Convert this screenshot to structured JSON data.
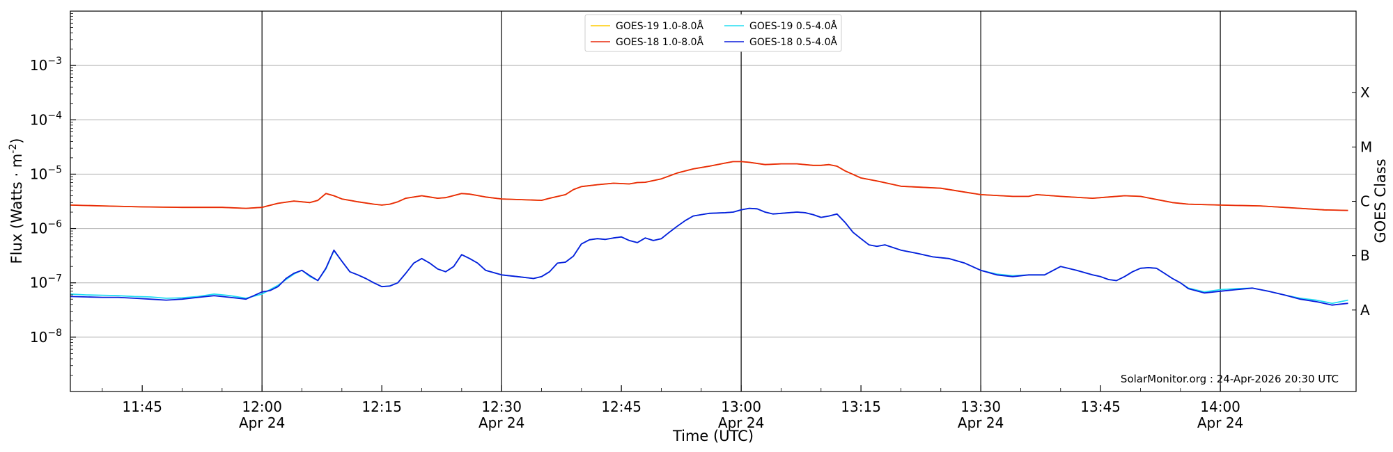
{
  "chart_data": {
    "type": "line",
    "xlabel": "Time (UTC)",
    "ylabel": "Flux (Watts · m",
    "ylabel_superscript": "-2",
    "ylabel_close": ")",
    "y2label": "GOES Class",
    "y_scale": "log",
    "ylim": [
      1e-09,
      0.01
    ],
    "xlim": [
      "11:36",
      "14:17"
    ],
    "grid": "horizontal",
    "legend_position": "top-center",
    "credit": "SolarMonitor.org : 24-Apr-2026 20:30 UTC",
    "y_ticks": [
      {
        "value": 0.001,
        "base": "10",
        "exp": "−3"
      },
      {
        "value": 0.0001,
        "base": "10",
        "exp": "−4"
      },
      {
        "value": 1e-05,
        "base": "10",
        "exp": "−5"
      },
      {
        "value": 1e-06,
        "base": "10",
        "exp": "−6"
      },
      {
        "value": 1e-07,
        "base": "10",
        "exp": "−7"
      },
      {
        "value": 1e-08,
        "base": "10",
        "exp": "−8"
      }
    ],
    "x_ticks": [
      {
        "time": "11:45",
        "label": "11:45",
        "date": ""
      },
      {
        "time": "12:00",
        "label": "12:00",
        "date": "Apr 24"
      },
      {
        "time": "12:15",
        "label": "12:15",
        "date": ""
      },
      {
        "time": "12:30",
        "label": "12:30",
        "date": "Apr 24"
      },
      {
        "time": "12:45",
        "label": "12:45",
        "date": ""
      },
      {
        "time": "13:00",
        "label": "13:00",
        "date": "Apr 24"
      },
      {
        "time": "13:15",
        "label": "13:15",
        "date": ""
      },
      {
        "time": "13:30",
        "label": "13:30",
        "date": "Apr 24"
      },
      {
        "time": "13:45",
        "label": "13:45",
        "date": ""
      },
      {
        "time": "14:00",
        "label": "14:00",
        "date": "Apr 24"
      }
    ],
    "vlines": [
      "12:00",
      "12:30",
      "13:00",
      "13:30",
      "14:00"
    ],
    "goes_classes": [
      {
        "label": "A",
        "value": 3.16e-08
      },
      {
        "label": "B",
        "value": 3.16e-07
      },
      {
        "label": "C",
        "value": 3.16e-06
      },
      {
        "label": "M",
        "value": 3.16e-05
      },
      {
        "label": "X",
        "value": 0.000316
      }
    ],
    "series": [
      {
        "name": "GOES-19 1.0-8.0Å",
        "color": "#ffcc00",
        "x": [
          "11:36",
          "11:40",
          "11:45",
          "11:50",
          "11:55",
          "11:58",
          "12:00",
          "12:02",
          "12:04",
          "12:06",
          "12:07",
          "12:08",
          "12:09",
          "12:10",
          "12:12",
          "12:14",
          "12:15",
          "12:16",
          "12:17",
          "12:18",
          "12:20",
          "12:21",
          "12:22",
          "12:23",
          "12:25",
          "12:26",
          "12:28",
          "12:30",
          "12:35",
          "12:36",
          "12:38",
          "12:39",
          "12:40",
          "12:42",
          "12:44",
          "12:46",
          "12:47",
          "12:48",
          "12:50",
          "12:52",
          "12:54",
          "12:56",
          "12:58",
          "12:59",
          "13:00",
          "13:01",
          "13:03",
          "13:05",
          "13:07",
          "13:09",
          "13:10",
          "13:11",
          "13:12",
          "13:13",
          "13:15",
          "13:17",
          "13:20",
          "13:25",
          "13:30",
          "13:34",
          "13:35",
          "13:36",
          "13:37",
          "13:40",
          "13:44",
          "13:46",
          "13:48",
          "13:50",
          "13:54",
          "13:56",
          "14:00",
          "14:05",
          "14:10",
          "14:13",
          "14:16"
        ],
        "values": [
          2.7e-06,
          2.6e-06,
          2.5e-06,
          2.45e-06,
          2.45e-06,
          2.35e-06,
          2.45e-06,
          2.9e-06,
          3.2e-06,
          3e-06,
          3.3e-06,
          4.4e-06,
          4e-06,
          3.5e-06,
          3.1e-06,
          2.8e-06,
          2.7e-06,
          2.8e-06,
          3.1e-06,
          3.6e-06,
          4e-06,
          3.8e-06,
          3.6e-06,
          3.7e-06,
          4.4e-06,
          4.3e-06,
          3.8e-06,
          3.5e-06,
          3.3e-06,
          3.6e-06,
          4.2e-06,
          5.2e-06,
          5.9e-06,
          6.4e-06,
          6.8e-06,
          6.6e-06,
          7e-06,
          7.1e-06,
          8.2e-06,
          1.05e-05,
          1.25e-05,
          1.4e-05,
          1.6e-05,
          1.7e-05,
          1.7e-05,
          1.65e-05,
          1.5e-05,
          1.55e-05,
          1.55e-05,
          1.45e-05,
          1.45e-05,
          1.5e-05,
          1.4e-05,
          1.15e-05,
          8.5e-06,
          7.5e-06,
          6e-06,
          5.5e-06,
          4.2e-06,
          3.9e-06,
          3.9e-06,
          3.9e-06,
          4.2e-06,
          3.9e-06,
          3.6e-06,
          3.8e-06,
          4e-06,
          3.9e-06,
          3e-06,
          2.8e-06,
          2.7e-06,
          2.6e-06,
          2.35e-06,
          2.2e-06,
          2.15e-06
        ]
      },
      {
        "name": "GOES-18 1.0-8.0Å",
        "color": "#e8280b",
        "x": [
          "11:36",
          "11:40",
          "11:45",
          "11:50",
          "11:55",
          "11:58",
          "12:00",
          "12:02",
          "12:04",
          "12:06",
          "12:07",
          "12:08",
          "12:09",
          "12:10",
          "12:12",
          "12:14",
          "12:15",
          "12:16",
          "12:17",
          "12:18",
          "12:20",
          "12:21",
          "12:22",
          "12:23",
          "12:25",
          "12:26",
          "12:28",
          "12:30",
          "12:35",
          "12:36",
          "12:38",
          "12:39",
          "12:40",
          "12:42",
          "12:44",
          "12:46",
          "12:47",
          "12:48",
          "12:50",
          "12:52",
          "12:54",
          "12:56",
          "12:58",
          "12:59",
          "13:00",
          "13:01",
          "13:03",
          "13:05",
          "13:07",
          "13:09",
          "13:10",
          "13:11",
          "13:12",
          "13:13",
          "13:15",
          "13:17",
          "13:20",
          "13:25",
          "13:30",
          "13:34",
          "13:35",
          "13:36",
          "13:37",
          "13:40",
          "13:44",
          "13:46",
          "13:48",
          "13:50",
          "13:54",
          "13:56",
          "14:00",
          "14:05",
          "14:10",
          "14:13",
          "14:16"
        ],
        "values": [
          2.7e-06,
          2.6e-06,
          2.5e-06,
          2.45e-06,
          2.45e-06,
          2.35e-06,
          2.45e-06,
          2.9e-06,
          3.2e-06,
          3e-06,
          3.3e-06,
          4.4e-06,
          4e-06,
          3.5e-06,
          3.1e-06,
          2.8e-06,
          2.7e-06,
          2.8e-06,
          3.1e-06,
          3.6e-06,
          4e-06,
          3.8e-06,
          3.6e-06,
          3.7e-06,
          4.4e-06,
          4.3e-06,
          3.8e-06,
          3.5e-06,
          3.3e-06,
          3.6e-06,
          4.2e-06,
          5.2e-06,
          5.9e-06,
          6.4e-06,
          6.8e-06,
          6.6e-06,
          7e-06,
          7.1e-06,
          8.2e-06,
          1.05e-05,
          1.25e-05,
          1.4e-05,
          1.6e-05,
          1.7e-05,
          1.7e-05,
          1.65e-05,
          1.5e-05,
          1.55e-05,
          1.55e-05,
          1.45e-05,
          1.45e-05,
          1.5e-05,
          1.4e-05,
          1.15e-05,
          8.5e-06,
          7.5e-06,
          6e-06,
          5.5e-06,
          4.2e-06,
          3.9e-06,
          3.9e-06,
          3.9e-06,
          4.2e-06,
          3.9e-06,
          3.6e-06,
          3.8e-06,
          4e-06,
          3.9e-06,
          3e-06,
          2.8e-06,
          2.7e-06,
          2.6e-06,
          2.35e-06,
          2.2e-06,
          2.15e-06
        ]
      },
      {
        "name": "GOES-19 0.5-4.0Å",
        "color": "#22ddf2",
        "x": [
          "11:36",
          "11:38",
          "11:40",
          "11:42",
          "11:44",
          "11:46",
          "11:48",
          "11:50",
          "11:52",
          "11:54",
          "11:56",
          "11:58",
          "12:00",
          "12:01",
          "12:02",
          "12:03",
          "12:04",
          "12:05",
          "12:06",
          "12:07",
          "12:08",
          "12:09",
          "12:10",
          "12:11",
          "12:12",
          "12:13",
          "12:14",
          "12:15",
          "12:16",
          "12:17",
          "12:18",
          "12:19",
          "12:20",
          "12:21",
          "12:22",
          "12:23",
          "12:24",
          "12:25",
          "12:26",
          "12:27",
          "12:28",
          "12:30",
          "12:32",
          "12:34",
          "12:35",
          "12:36",
          "12:37",
          "12:38",
          "12:39",
          "12:40",
          "12:41",
          "12:42",
          "12:43",
          "12:44",
          "12:45",
          "12:46",
          "12:47",
          "12:48",
          "12:49",
          "12:50",
          "12:51",
          "12:52",
          "12:53",
          "12:54",
          "12:56",
          "12:58",
          "12:59",
          "13:00",
          "13:01",
          "13:02",
          "13:03",
          "13:04",
          "13:05",
          "13:06",
          "13:07",
          "13:08",
          "13:09",
          "13:10",
          "13:11",
          "13:12",
          "13:13",
          "13:14",
          "13:15",
          "13:16",
          "13:17",
          "13:18",
          "13:20",
          "13:22",
          "13:24",
          "13:26",
          "13:28",
          "13:30",
          "13:32",
          "13:34",
          "13:36",
          "13:38",
          "13:40",
          "13:42",
          "13:44",
          "13:45",
          "13:46",
          "13:47",
          "13:48",
          "13:49",
          "13:50",
          "13:51",
          "13:52",
          "13:53",
          "13:54",
          "13:55",
          "13:56",
          "13:58",
          "14:00",
          "14:02",
          "14:04",
          "14:06",
          "14:08",
          "14:10",
          "14:12",
          "14:14",
          "14:16"
        ],
        "values": [
          6.2e-08,
          6e-08,
          5.9e-08,
          5.8e-08,
          5.6e-08,
          5.5e-08,
          5.2e-08,
          5.3e-08,
          5.6e-08,
          6.2e-08,
          5.8e-08,
          5.2e-08,
          6.2e-08,
          7.5e-08,
          9e-08,
          1.15e-07,
          1.45e-07,
          1.7e-07,
          1.3e-07,
          1.1e-07,
          1.8e-07,
          3.9e-07,
          2.5e-07,
          1.6e-07,
          1.4e-07,
          1.2e-07,
          1e-07,
          8.5e-08,
          8.8e-08,
          1e-07,
          1.5e-07,
          2.3e-07,
          2.8e-07,
          2.3e-07,
          1.8e-07,
          1.6e-07,
          2e-07,
          3.3e-07,
          2.8e-07,
          2.3e-07,
          1.7e-07,
          1.4e-07,
          1.3e-07,
          1.2e-07,
          1.3e-07,
          1.6e-07,
          2.3e-07,
          2.4e-07,
          3.1e-07,
          5.2e-07,
          6.2e-07,
          6.5e-07,
          6.3e-07,
          6.7e-07,
          7e-07,
          6e-07,
          5.5e-07,
          6.7e-07,
          6e-07,
          6.5e-07,
          8.5e-07,
          1.1e-06,
          1.4e-06,
          1.7e-06,
          1.9e-06,
          1.95e-06,
          2e-06,
          2.2e-06,
          2.35e-06,
          2.3e-06,
          2e-06,
          1.85e-06,
          1.9e-06,
          1.95e-06,
          2e-06,
          1.95e-06,
          1.8e-06,
          1.6e-06,
          1.7e-06,
          1.85e-06,
          1.3e-06,
          8.5e-07,
          6.5e-07,
          5e-07,
          4.7e-07,
          5e-07,
          4e-07,
          3.5e-07,
          3e-07,
          2.8e-07,
          2.3e-07,
          1.7e-07,
          1.45e-07,
          1.35e-07,
          1.4e-07,
          1.4e-07,
          2e-07,
          1.7e-07,
          1.4e-07,
          1.3e-07,
          1.15e-07,
          1.1e-07,
          1.3e-07,
          1.6e-07,
          1.85e-07,
          1.9e-07,
          1.85e-07,
          1.5e-07,
          1.2e-07,
          1e-07,
          8e-08,
          6.8e-08,
          7.5e-08,
          7.8e-08,
          8e-08,
          7e-08,
          6e-08,
          5.2e-08,
          4.8e-08,
          4.2e-08,
          4.8e-08
        ]
      },
      {
        "name": "GOES-18 0.5-4.0Å",
        "color": "#0a1bdb",
        "x": [
          "11:36",
          "11:38",
          "11:40",
          "11:42",
          "11:44",
          "11:46",
          "11:48",
          "11:50",
          "11:52",
          "11:54",
          "11:56",
          "11:58",
          "12:00",
          "12:01",
          "12:02",
          "12:03",
          "12:04",
          "12:05",
          "12:06",
          "12:07",
          "12:08",
          "12:09",
          "12:10",
          "12:11",
          "12:12",
          "12:13",
          "12:14",
          "12:15",
          "12:16",
          "12:17",
          "12:18",
          "12:19",
          "12:20",
          "12:21",
          "12:22",
          "12:23",
          "12:24",
          "12:25",
          "12:26",
          "12:27",
          "12:28",
          "12:30",
          "12:32",
          "12:34",
          "12:35",
          "12:36",
          "12:37",
          "12:38",
          "12:39",
          "12:40",
          "12:41",
          "12:42",
          "12:43",
          "12:44",
          "12:45",
          "12:46",
          "12:47",
          "12:48",
          "12:49",
          "12:50",
          "12:51",
          "12:52",
          "12:53",
          "12:54",
          "12:56",
          "12:58",
          "12:59",
          "13:00",
          "13:01",
          "13:02",
          "13:03",
          "13:04",
          "13:05",
          "13:06",
          "13:07",
          "13:08",
          "13:09",
          "13:10",
          "13:11",
          "13:12",
          "13:13",
          "13:14",
          "13:15",
          "13:16",
          "13:17",
          "13:18",
          "13:20",
          "13:22",
          "13:24",
          "13:26",
          "13:28",
          "13:30",
          "13:32",
          "13:34",
          "13:36",
          "13:38",
          "13:40",
          "13:42",
          "13:44",
          "13:45",
          "13:46",
          "13:47",
          "13:48",
          "13:49",
          "13:50",
          "13:51",
          "13:52",
          "13:53",
          "13:54",
          "13:55",
          "13:56",
          "13:58",
          "14:00",
          "14:02",
          "14:04",
          "14:06",
          "14:08",
          "14:10",
          "14:12",
          "14:14",
          "14:16"
        ],
        "values": [
          5.6e-08,
          5.5e-08,
          5.4e-08,
          5.4e-08,
          5.2e-08,
          5e-08,
          4.8e-08,
          5e-08,
          5.4e-08,
          5.8e-08,
          5.4e-08,
          5e-08,
          6.8e-08,
          7.2e-08,
          8.5e-08,
          1.2e-07,
          1.5e-07,
          1.7e-07,
          1.35e-07,
          1.1e-07,
          1.85e-07,
          4e-07,
          2.5e-07,
          1.6e-07,
          1.4e-07,
          1.2e-07,
          1e-07,
          8.5e-08,
          8.7e-08,
          1e-07,
          1.5e-07,
          2.3e-07,
          2.8e-07,
          2.3e-07,
          1.8e-07,
          1.6e-07,
          2e-07,
          3.3e-07,
          2.8e-07,
          2.3e-07,
          1.7e-07,
          1.4e-07,
          1.3e-07,
          1.2e-07,
          1.3e-07,
          1.6e-07,
          2.3e-07,
          2.4e-07,
          3.1e-07,
          5.2e-07,
          6.2e-07,
          6.5e-07,
          6.3e-07,
          6.7e-07,
          7e-07,
          6e-07,
          5.5e-07,
          6.7e-07,
          6e-07,
          6.5e-07,
          8.5e-07,
          1.1e-06,
          1.4e-06,
          1.7e-06,
          1.9e-06,
          1.95e-06,
          2e-06,
          2.2e-06,
          2.35e-06,
          2.3e-06,
          2e-06,
          1.85e-06,
          1.9e-06,
          1.95e-06,
          2e-06,
          1.95e-06,
          1.8e-06,
          1.6e-06,
          1.7e-06,
          1.85e-06,
          1.3e-06,
          8.5e-07,
          6.5e-07,
          5e-07,
          4.7e-07,
          5e-07,
          4e-07,
          3.5e-07,
          3e-07,
          2.8e-07,
          2.3e-07,
          1.7e-07,
          1.4e-07,
          1.3e-07,
          1.4e-07,
          1.4e-07,
          2e-07,
          1.7e-07,
          1.4e-07,
          1.3e-07,
          1.15e-07,
          1.1e-07,
          1.3e-07,
          1.6e-07,
          1.85e-07,
          1.9e-07,
          1.85e-07,
          1.5e-07,
          1.2e-07,
          1e-07,
          7.8e-08,
          6.5e-08,
          7e-08,
          7.5e-08,
          8e-08,
          7e-08,
          6e-08,
          5e-08,
          4.5e-08,
          3.9e-08,
          4.2e-08
        ]
      }
    ]
  }
}
